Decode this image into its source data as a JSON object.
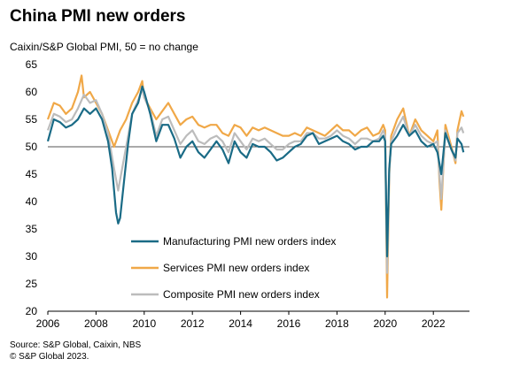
{
  "title": "China PMI new orders",
  "subtitle": "Caixin/S&P Global  PMI, 50 = no change",
  "source_line1": "Source: S&P Global, Caixin, NBS",
  "source_line2": "© S&P Global 2023.",
  "chart_data": {
    "type": "line",
    "title": "China PMI new orders",
    "ylabel": "Caixin/S&P Global  PMI, 50 = no change",
    "xlim": [
      2006,
      2023.5
    ],
    "ylim": [
      20,
      65
    ],
    "yticks": [
      20,
      25,
      30,
      35,
      40,
      45,
      50,
      55,
      60,
      65
    ],
    "xticks": [
      2006,
      2008,
      2010,
      2012,
      2014,
      2016,
      2018,
      2020,
      2022
    ],
    "reference_line": 50,
    "grid": false,
    "legend_position": "center-left",
    "series": [
      {
        "name": "Manufacturing PMI new orders index",
        "color": "#1a6b86",
        "x": [
          2006.0,
          2006.25,
          2006.5,
          2006.75,
          2007.0,
          2007.25,
          2007.5,
          2007.75,
          2008.0,
          2008.25,
          2008.5,
          2008.67,
          2008.83,
          2008.92,
          2009.0,
          2009.17,
          2009.33,
          2009.5,
          2009.75,
          2009.92,
          2010.0,
          2010.25,
          2010.5,
          2010.75,
          2011.0,
          2011.25,
          2011.5,
          2011.75,
          2012.0,
          2012.25,
          2012.5,
          2012.75,
          2013.0,
          2013.25,
          2013.5,
          2013.75,
          2014.0,
          2014.25,
          2014.5,
          2014.75,
          2015.0,
          2015.25,
          2015.5,
          2015.75,
          2016.0,
          2016.25,
          2016.5,
          2016.75,
          2017.0,
          2017.25,
          2017.5,
          2017.75,
          2018.0,
          2018.25,
          2018.5,
          2018.75,
          2019.0,
          2019.25,
          2019.5,
          2019.75,
          2019.92,
          2020.0,
          2020.08,
          2020.17,
          2020.25,
          2020.5,
          2020.75,
          2021.0,
          2021.25,
          2021.5,
          2021.75,
          2022.0,
          2022.17,
          2022.25,
          2022.33,
          2022.5,
          2022.75,
          2022.92,
          2023.0,
          2023.17,
          2023.25
        ],
        "values": [
          51.0,
          55.0,
          54.5,
          53.5,
          54.0,
          55.0,
          57.0,
          56.0,
          57.0,
          55.0,
          51.0,
          46.0,
          38.0,
          36.0,
          37.0,
          44.0,
          50.5,
          56.0,
          58.0,
          61.0,
          60.0,
          56.0,
          51.0,
          54.0,
          54.0,
          51.5,
          48.0,
          50.0,
          51.0,
          49.0,
          48.0,
          49.5,
          51.0,
          49.5,
          47.0,
          51.0,
          49.0,
          48.0,
          50.5,
          50.0,
          50.0,
          49.0,
          47.5,
          48.0,
          49.0,
          50.0,
          50.5,
          52.0,
          52.5,
          50.5,
          51.0,
          51.5,
          52.0,
          51.0,
          50.5,
          49.5,
          50.0,
          50.0,
          51.0,
          51.0,
          52.0,
          51.0,
          30.0,
          46.0,
          50.5,
          52.0,
          54.0,
          52.0,
          53.0,
          51.0,
          50.0,
          50.5,
          49.0,
          47.0,
          45.0,
          52.5,
          49.5,
          48.0,
          51.5,
          50.5,
          49.0
        ]
      },
      {
        "name": "Services PMI new orders index",
        "color": "#f0a848",
        "x": [
          2006.0,
          2006.25,
          2006.5,
          2006.75,
          2007.0,
          2007.25,
          2007.4,
          2007.5,
          2007.75,
          2008.0,
          2008.25,
          2008.5,
          2008.75,
          2009.0,
          2009.25,
          2009.5,
          2009.75,
          2009.92,
          2010.0,
          2010.25,
          2010.5,
          2010.75,
          2011.0,
          2011.25,
          2011.5,
          2011.75,
          2012.0,
          2012.25,
          2012.5,
          2012.75,
          2013.0,
          2013.25,
          2013.5,
          2013.75,
          2014.0,
          2014.25,
          2014.5,
          2014.75,
          2015.0,
          2015.25,
          2015.5,
          2015.75,
          2016.0,
          2016.25,
          2016.5,
          2016.75,
          2017.0,
          2017.25,
          2017.5,
          2017.75,
          2018.0,
          2018.25,
          2018.5,
          2018.75,
          2019.0,
          2019.25,
          2019.5,
          2019.75,
          2019.92,
          2020.0,
          2020.08,
          2020.17,
          2020.25,
          2020.5,
          2020.75,
          2021.0,
          2021.25,
          2021.5,
          2021.75,
          2022.0,
          2022.17,
          2022.25,
          2022.33,
          2022.5,
          2022.75,
          2022.92,
          2023.0,
          2023.17,
          2023.25
        ],
        "values": [
          55.0,
          58.0,
          57.5,
          56.0,
          57.0,
          60.0,
          63.0,
          59.0,
          60.0,
          58.0,
          56.0,
          53.0,
          50.0,
          53.0,
          55.0,
          58.0,
          60.0,
          62.0,
          59.0,
          57.0,
          55.0,
          56.5,
          58.0,
          56.0,
          54.0,
          55.0,
          55.5,
          54.0,
          53.5,
          54.0,
          54.0,
          52.5,
          52.0,
          54.0,
          53.5,
          52.0,
          53.5,
          53.0,
          53.5,
          53.0,
          52.5,
          52.0,
          52.0,
          52.5,
          52.0,
          53.5,
          53.0,
          52.5,
          52.0,
          53.0,
          54.0,
          53.0,
          53.0,
          52.0,
          53.0,
          53.5,
          52.0,
          52.5,
          54.0,
          53.0,
          22.5,
          45.0,
          52.0,
          55.0,
          57.0,
          52.0,
          55.0,
          53.0,
          52.0,
          51.0,
          53.0,
          44.0,
          38.5,
          54.0,
          50.0,
          47.0,
          53.0,
          56.5,
          55.5
        ]
      },
      {
        "name": "Composite PMI new orders index",
        "color": "#bcbcbc",
        "x": [
          2006.0,
          2006.25,
          2006.5,
          2006.75,
          2007.0,
          2007.25,
          2007.5,
          2007.75,
          2008.0,
          2008.25,
          2008.5,
          2008.75,
          2008.92,
          2009.0,
          2009.25,
          2009.5,
          2009.75,
          2009.92,
          2010.0,
          2010.25,
          2010.5,
          2010.75,
          2011.0,
          2011.25,
          2011.5,
          2011.75,
          2012.0,
          2012.25,
          2012.5,
          2012.75,
          2013.0,
          2013.25,
          2013.5,
          2013.75,
          2014.0,
          2014.25,
          2014.5,
          2014.75,
          2015.0,
          2015.25,
          2015.5,
          2015.75,
          2016.0,
          2016.25,
          2016.5,
          2016.75,
          2017.0,
          2017.25,
          2017.5,
          2017.75,
          2018.0,
          2018.25,
          2018.5,
          2018.75,
          2019.0,
          2019.25,
          2019.5,
          2019.75,
          2019.92,
          2020.0,
          2020.08,
          2020.17,
          2020.25,
          2020.5,
          2020.75,
          2021.0,
          2021.25,
          2021.5,
          2021.75,
          2022.0,
          2022.17,
          2022.25,
          2022.33,
          2022.5,
          2022.75,
          2022.92,
          2023.0,
          2023.17,
          2023.25
        ],
        "values": [
          53.0,
          56.0,
          55.5,
          54.5,
          55.0,
          57.0,
          59.5,
          58.0,
          58.5,
          56.0,
          52.5,
          46.0,
          42.0,
          44.0,
          50.0,
          56.0,
          58.5,
          60.5,
          59.0,
          56.5,
          52.0,
          55.0,
          55.5,
          53.0,
          50.5,
          52.0,
          53.0,
          51.0,
          50.5,
          51.5,
          52.0,
          51.0,
          49.0,
          52.5,
          51.0,
          49.5,
          51.5,
          51.0,
          51.5,
          50.5,
          49.5,
          49.5,
          50.5,
          51.0,
          51.0,
          52.5,
          52.5,
          51.5,
          51.5,
          52.0,
          53.0,
          52.0,
          51.5,
          50.5,
          51.5,
          51.5,
          51.0,
          51.5,
          53.0,
          52.0,
          27.0,
          45.5,
          51.0,
          53.5,
          55.5,
          52.0,
          54.0,
          52.0,
          51.0,
          50.5,
          51.0,
          45.0,
          40.5,
          53.0,
          49.5,
          47.5,
          52.5,
          53.5,
          52.5
        ]
      }
    ]
  }
}
